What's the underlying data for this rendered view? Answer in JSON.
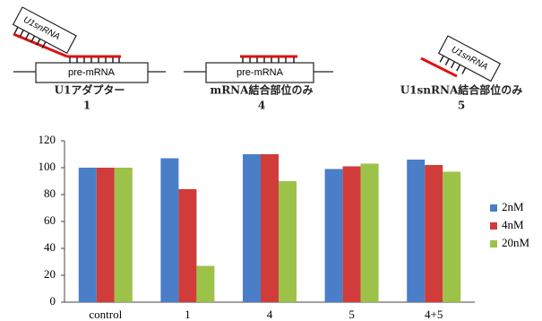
{
  "diagram": {
    "panels": [
      {
        "snrna_label": "U1snRNA",
        "mrna_label": "pre-mRNA",
        "caption": "U1アダプター",
        "number": "1"
      },
      {
        "mrna_label": "pre-mRNA",
        "caption": "mRNA結合部位のみ",
        "number": "4"
      },
      {
        "snrna_label": "U1snRNA",
        "caption": "U1snRNA結合部位のみ",
        "number": "5"
      }
    ]
  },
  "chart_data": {
    "type": "bar",
    "categories": [
      "control",
      "1",
      "4",
      "5",
      "4+5"
    ],
    "series": [
      {
        "name": "2nM",
        "color": "#4a7ec9",
        "values": [
          100,
          107,
          110,
          99,
          106
        ]
      },
      {
        "name": "4nM",
        "color": "#d03c3a",
        "values": [
          100,
          84,
          110,
          101,
          102
        ]
      },
      {
        "name": "20nM",
        "color": "#9cc24a",
        "values": [
          100,
          27,
          90,
          103,
          97
        ]
      }
    ],
    "ylim": [
      0,
      120
    ],
    "yticks": [
      0,
      20,
      40,
      60,
      80,
      100,
      120
    ],
    "grid": false,
    "legend": "right"
  }
}
